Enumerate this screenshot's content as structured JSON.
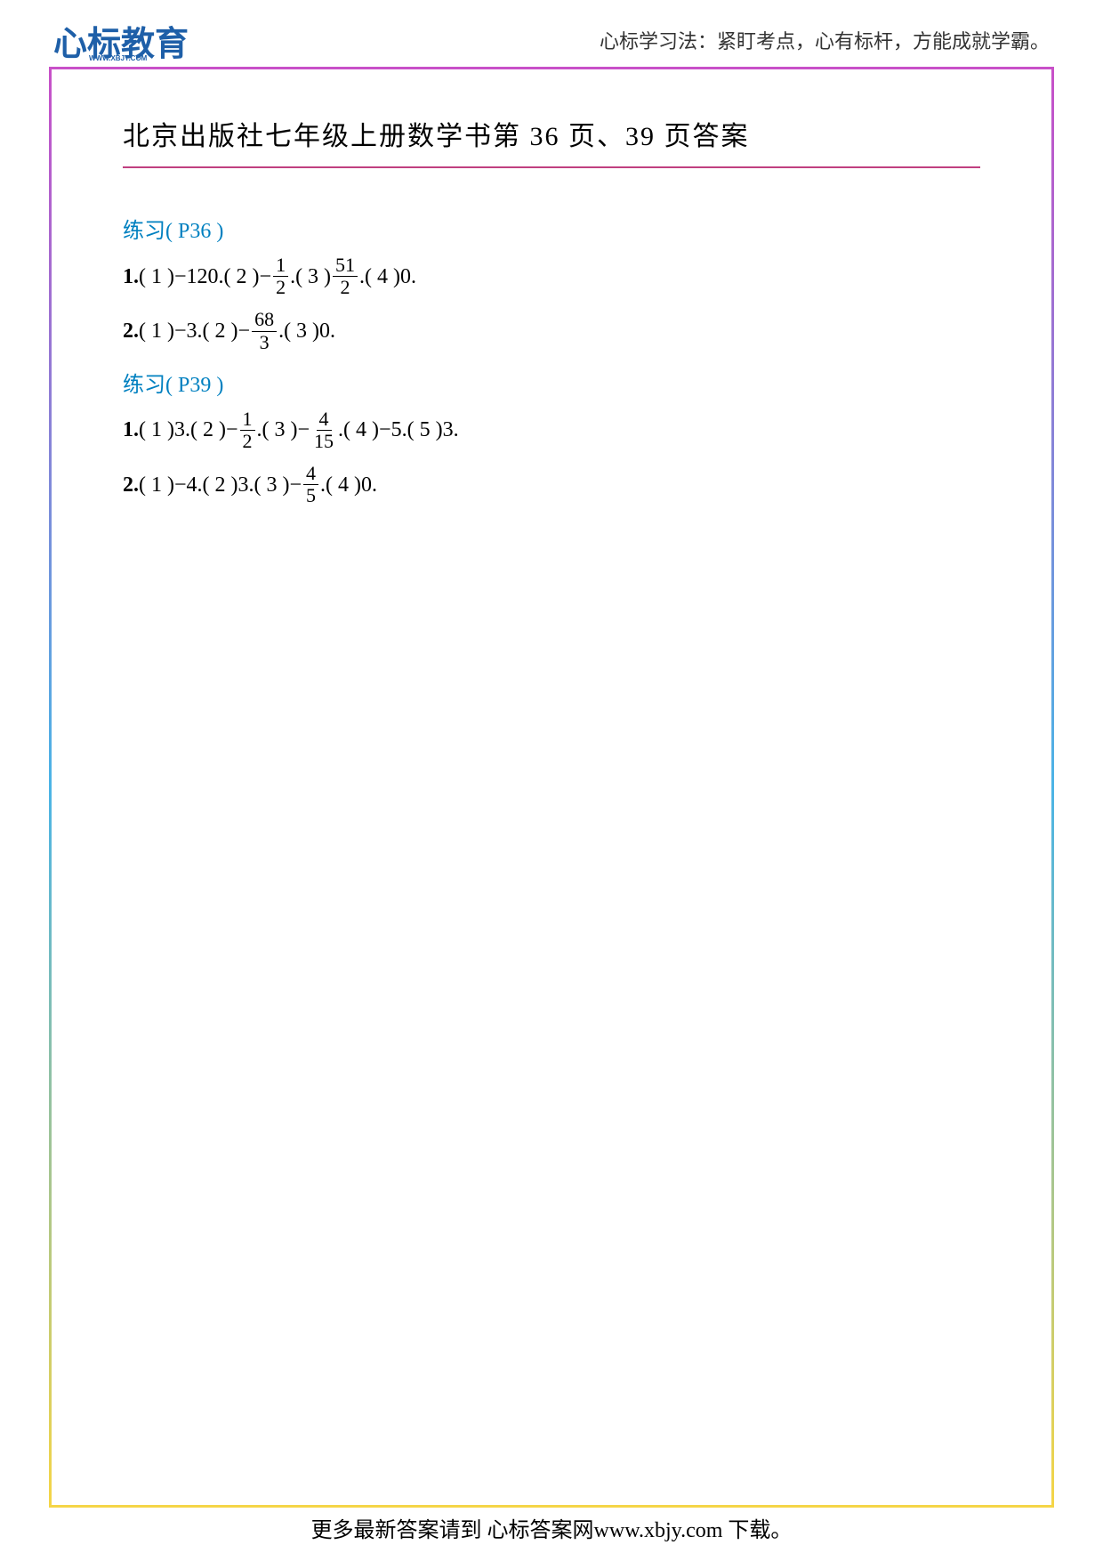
{
  "header": {
    "logo_text1": "心",
    "logo_text2": "标",
    "logo_text3": "教育",
    "logo_url": "WWW.XBJY.COM",
    "tagline": "心标学习法：紧盯考点，心有标杆，方能成就学霸。"
  },
  "title": "北京出版社七年级上册数学书第 36 页、39 页答案",
  "sections": [
    {
      "heading": "练习( P36 )",
      "heading_color": "#0080c0",
      "problems": [
        {
          "number": "1.",
          "parts": [
            {
              "label": "( 1 )",
              "value": "−120."
            },
            {
              "label": "( 2 )",
              "value_prefix": "−",
              "fraction": {
                "num": "1",
                "den": "2"
              },
              "value_suffix": "."
            },
            {
              "label": "( 3 )",
              "fraction": {
                "num": "51",
                "den": "2"
              },
              "value_suffix": "."
            },
            {
              "label": "( 4 )",
              "value": "0."
            }
          ]
        },
        {
          "number": "2.",
          "parts": [
            {
              "label": "( 1 )",
              "value": "−3."
            },
            {
              "label": "( 2 )",
              "value_prefix": "−",
              "fraction": {
                "num": "68",
                "den": "3"
              },
              "value_suffix": "."
            },
            {
              "label": "( 3 )",
              "value": "0."
            }
          ]
        }
      ]
    },
    {
      "heading": "练习( P39 )",
      "heading_color": "#0080c0",
      "problems": [
        {
          "number": "1.",
          "parts": [
            {
              "label": "( 1 )",
              "value": "3."
            },
            {
              "label": "( 2 )",
              "value_prefix": "−",
              "fraction": {
                "num": "1",
                "den": "2"
              },
              "value_suffix": "."
            },
            {
              "label": "( 3 )",
              "value_prefix": "−",
              "fraction": {
                "num": "4",
                "den": "15"
              },
              "value_suffix": "."
            },
            {
              "label": "( 4 )",
              "value": "−5."
            },
            {
              "label": "( 5 )",
              "value": "3."
            }
          ]
        },
        {
          "number": "2.",
          "parts": [
            {
              "label": "( 1 )",
              "value": "−4."
            },
            {
              "label": "( 2 )",
              "value": "3."
            },
            {
              "label": "( 3 )",
              "value_prefix": "−",
              "fraction": {
                "num": "4",
                "den": "5"
              },
              "value_suffix": "."
            },
            {
              "label": "( 4 )",
              "value": "0."
            }
          ]
        }
      ]
    }
  ],
  "footer": "更多最新答案请到 心标答案网www.xbjy.com 下载。",
  "colors": {
    "logo_color": "#1e5fa8",
    "heading_color": "#0080c0",
    "underline_color": "#c04080",
    "border_top": "#c850c8",
    "border_bottom": "#4bb4e6",
    "text_color": "#000000",
    "background": "#ffffff"
  },
  "typography": {
    "title_fontsize": 30,
    "heading_fontsize": 24,
    "body_fontsize": 24,
    "footer_fontsize": 24,
    "logo_fontsize": 38
  }
}
